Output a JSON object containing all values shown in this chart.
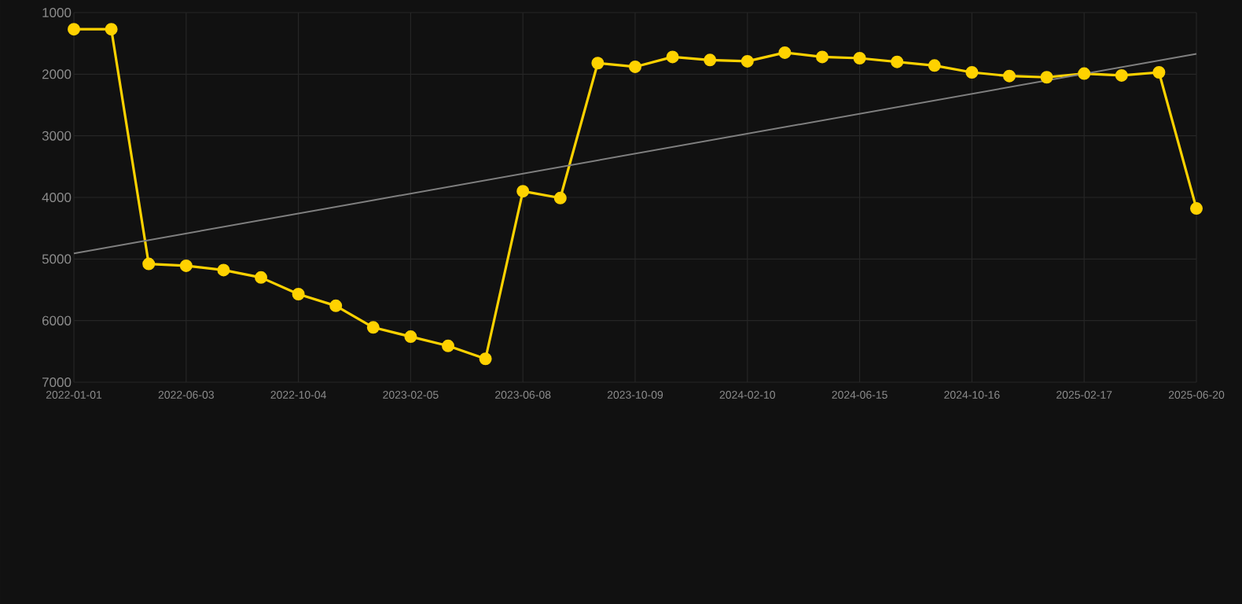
{
  "chart_data": {
    "type": "line",
    "categories": [
      "2022-01-01",
      null,
      null,
      "2022-06-03",
      null,
      null,
      "2022-10-04",
      null,
      null,
      "2023-02-05",
      null,
      null,
      "2023-06-08",
      null,
      null,
      "2023-10-09",
      null,
      null,
      "2024-02-10",
      null,
      null,
      "2024-06-15",
      null,
      null,
      "2024-10-16",
      null,
      null,
      "2025-02-17",
      null,
      null,
      "2025-06-20"
    ],
    "series": [
      {
        "color": "#ffd200",
        "marker": "circle",
        "values": [
          1270,
          1270,
          5080,
          5110,
          5180,
          5300,
          5570,
          5760,
          6110,
          6260,
          6410,
          6620,
          3900,
          4010,
          1820,
          1880,
          1720,
          1770,
          1790,
          1650,
          1720,
          1740,
          1800,
          1860,
          1970,
          2030,
          2050,
          1990,
          2020,
          1970,
          4180
        ]
      },
      {
        "type": "line",
        "color": "#7f7f7f",
        "marker": "none",
        "values": [
          4910,
          null,
          null,
          null,
          null,
          null,
          null,
          null,
          null,
          null,
          null,
          null,
          null,
          null,
          null,
          null,
          null,
          null,
          null,
          null,
          null,
          null,
          null,
          null,
          null,
          null,
          null,
          null,
          null,
          null,
          1670
        ]
      }
    ],
    "ylim": [
      7000,
      1000
    ],
    "yticks": [
      1000,
      2000,
      3000,
      4000,
      5000,
      6000,
      7000
    ],
    "grid": true,
    "line_style": "solid"
  }
}
